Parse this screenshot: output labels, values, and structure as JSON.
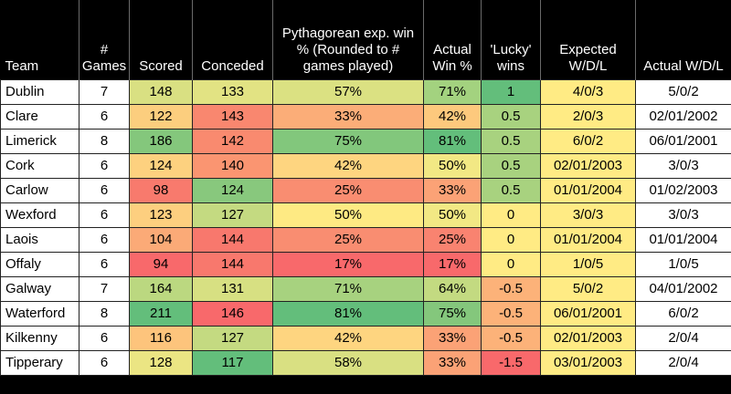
{
  "headers": {
    "team": "Team",
    "games": "# Games",
    "scored": "Scored",
    "conceded": "Conceded",
    "pyth": "Pythagorean exp. win % (Rounded to # games played)",
    "actual": "Actual Win %",
    "lucky": "'Lucky' wins",
    "expected_wdl": "Expected W/D/L",
    "actual_wdl": "Actual W/D/L"
  },
  "chart_data": {
    "type": "table",
    "columns": [
      "Team",
      "# Games",
      "Scored",
      "Conceded",
      "Pythagorean exp. win % (Rounded to # games played)",
      "Actual Win %",
      "'Lucky' wins",
      "Expected W/D/L",
      "Actual W/D/L"
    ],
    "rows": [
      [
        "Dublin",
        "7",
        "148",
        "133",
        "57%",
        "71%",
        "1",
        "4/0/3",
        "5/0/2"
      ],
      [
        "Clare",
        "6",
        "122",
        "143",
        "33%",
        "42%",
        "0.5",
        "2/0/3",
        "02/01/2002"
      ],
      [
        "Limerick",
        "8",
        "186",
        "142",
        "75%",
        "81%",
        "0.5",
        "6/0/2",
        "06/01/2001"
      ],
      [
        "Cork",
        "6",
        "124",
        "140",
        "42%",
        "50%",
        "0.5",
        "02/01/2003",
        "3/0/3"
      ],
      [
        "Carlow",
        "6",
        "98",
        "124",
        "25%",
        "33%",
        "0.5",
        "01/01/2004",
        "01/02/2003"
      ],
      [
        "Wexford",
        "6",
        "123",
        "127",
        "50%",
        "50%",
        "0",
        "3/0/3",
        "3/0/3"
      ],
      [
        "Laois",
        "6",
        "104",
        "144",
        "25%",
        "25%",
        "0",
        "01/01/2004",
        "01/01/2004"
      ],
      [
        "Offaly",
        "6",
        "94",
        "144",
        "17%",
        "17%",
        "0",
        "1/0/5",
        "1/0/5"
      ],
      [
        "Galway",
        "7",
        "164",
        "131",
        "71%",
        "64%",
        "-0.5",
        "5/0/2",
        "04/01/2002"
      ],
      [
        "Waterford",
        "8",
        "211",
        "146",
        "81%",
        "75%",
        "-0.5",
        "06/01/2001",
        "6/0/2"
      ],
      [
        "Kilkenny",
        "6",
        "116",
        "127",
        "42%",
        "33%",
        "-0.5",
        "02/01/2003",
        "2/0/4"
      ],
      [
        "Tipperary",
        "6",
        "128",
        "117",
        "58%",
        "33%",
        "-1.5",
        "03/01/2003",
        "2/0/4"
      ]
    ],
    "cell_colors": {
      "scored": [
        "#d9e082",
        "#fcce7e",
        "#84c77c",
        "#fdd17f",
        "#f87a6d",
        "#fdcf7f",
        "#fbaa77",
        "#f8696b",
        "#bbd880",
        "#63be7b",
        "#fdc47c",
        "#ebe583"
      ],
      "conceded": [
        "#e2e383",
        "#f9876f",
        "#f98a6f",
        "#fa9571",
        "#88c87d",
        "#c4da81",
        "#f8786d",
        "#f8786d",
        "#d7e082",
        "#f8696b",
        "#c4da81",
        "#63be7b"
      ],
      "pyth": [
        "#dbe182",
        "#fbad78",
        "#82c77c",
        "#fed580",
        "#f98d71",
        "#feea83",
        "#f98d71",
        "#f8696b",
        "#a7d27f",
        "#63be7b",
        "#fed580",
        "#d9e082"
      ],
      "actual": [
        "#a3d27f",
        "#fdc97d",
        "#63be7b",
        "#f2e884",
        "#fba276",
        "#f2e884",
        "#f98370",
        "#f8696b",
        "#c3da81",
        "#84c77c",
        "#fba276",
        "#fba276"
      ],
      "lucky": [
        "#63be7b",
        "#a8d27f",
        "#a8d27f",
        "#a8d27f",
        "#a8d27f",
        "#ffeb84",
        "#ffeb84",
        "#ffeb84",
        "#fcb279",
        "#fcb279",
        "#fcb279",
        "#f8696b"
      ],
      "expected_wdl": "#ffeb84",
      "text_cells": "#ffffff"
    }
  }
}
